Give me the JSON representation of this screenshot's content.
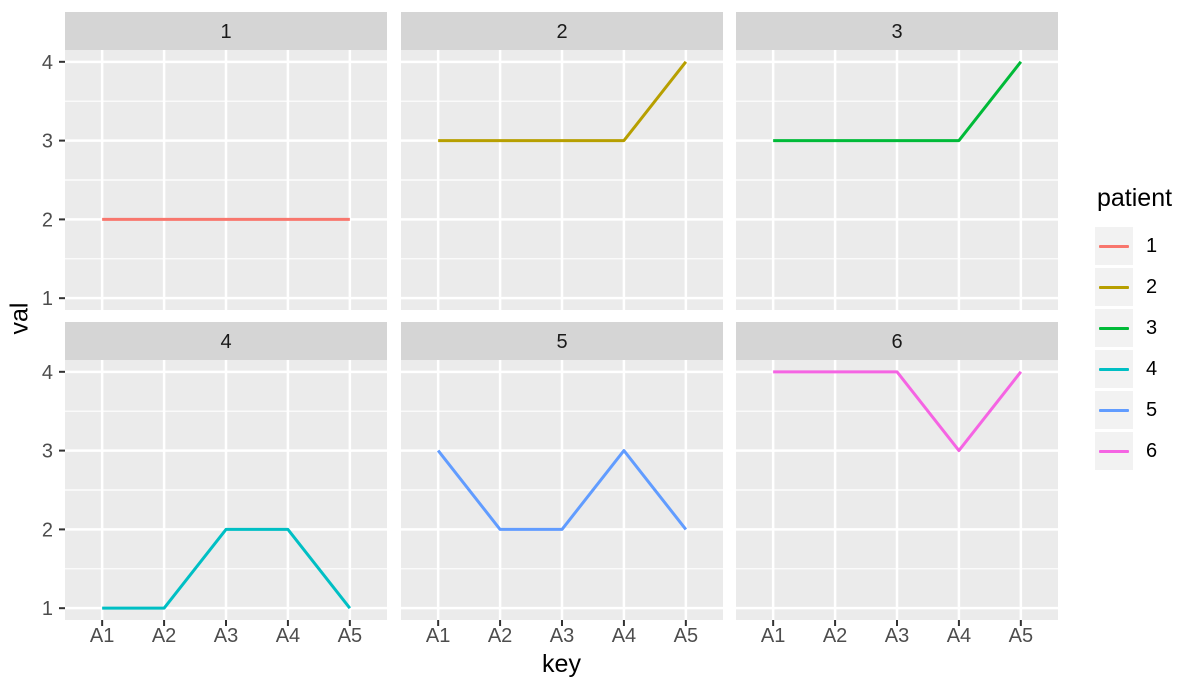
{
  "chart_data": {
    "type": "line",
    "faceted_by": "patient",
    "x_categories": [
      "A1",
      "A2",
      "A3",
      "A4",
      "A5"
    ],
    "xlabel": "key",
    "ylabel": "val",
    "y_ticks": [
      1,
      2,
      3,
      4
    ],
    "y_minor_ticks": [
      1.5,
      2.5,
      3.5
    ],
    "ylim": [
      1,
      4
    ],
    "grid": "white major and minor gridlines on grey panel",
    "legend_position": "right",
    "legend_title": "patient",
    "facets": [
      {
        "label": "1",
        "series": "1",
        "color": "#F8766D",
        "values": [
          2,
          2,
          2,
          2,
          2
        ]
      },
      {
        "label": "2",
        "series": "2",
        "color": "#B79F00",
        "values": [
          3,
          3,
          3,
          3,
          4
        ]
      },
      {
        "label": "3",
        "series": "3",
        "color": "#00BA38",
        "values": [
          3,
          3,
          3,
          3,
          4
        ]
      },
      {
        "label": "4",
        "series": "4",
        "color": "#00BFC4",
        "values": [
          1,
          1,
          2,
          2,
          1
        ]
      },
      {
        "label": "5",
        "series": "5",
        "color": "#619CFF",
        "values": [
          3,
          2,
          2,
          3,
          2
        ]
      },
      {
        "label": "6",
        "series": "6",
        "color": "#F564E3",
        "values": [
          4,
          4,
          4,
          3,
          4
        ]
      }
    ],
    "legend": [
      {
        "label": "1",
        "color": "#F8766D"
      },
      {
        "label": "2",
        "color": "#B79F00"
      },
      {
        "label": "3",
        "color": "#00BA38"
      },
      {
        "label": "4",
        "color": "#00BFC4"
      },
      {
        "label": "5",
        "color": "#619CFF"
      },
      {
        "label": "6",
        "color": "#F564E3"
      }
    ],
    "style": {
      "background": "#FFFFFF",
      "panel_bg": "#EBEBEB",
      "strip_bg": "#D5D5D5",
      "grid_color": "#FFFFFF",
      "axis_text_color": "#4D4D4D",
      "strip_text_color": "#1A1A1A",
      "title_color": "#000000",
      "legend_key_bg": "#F2F2F2",
      "tick_color": "#333333"
    }
  }
}
